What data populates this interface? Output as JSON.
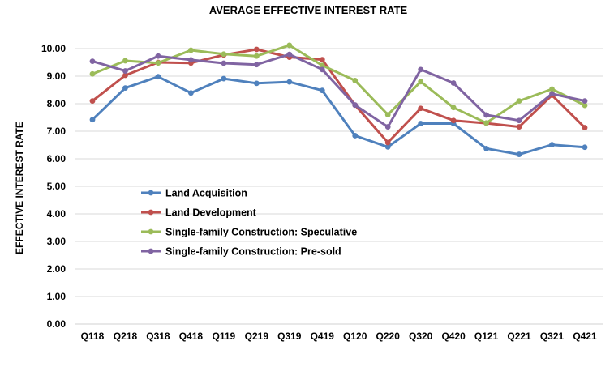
{
  "chart_data": {
    "type": "line",
    "title": "AVERAGE EFFECTIVE INTEREST RATE",
    "xlabel": "",
    "ylabel": "EFFECTIVE INTEREST RATE",
    "ylim": [
      0,
      10
    ],
    "yticks": [
      "0.00",
      "1.00",
      "2.00",
      "3.00",
      "4.00",
      "5.00",
      "6.00",
      "7.00",
      "8.00",
      "9.00",
      "10.00"
    ],
    "grid": "horizontal",
    "legend_position": "center-left",
    "categories": [
      "Q118",
      "Q218",
      "Q318",
      "Q418",
      "Q119",
      "Q219",
      "Q319",
      "Q419",
      "Q120",
      "Q220",
      "Q320",
      "Q420",
      "Q121",
      "Q221",
      "Q321",
      "Q421"
    ],
    "series": [
      {
        "name": "Land Acquisition",
        "color": "#4F81BD",
        "values": [
          7.42,
          8.57,
          8.98,
          8.39,
          8.91,
          8.74,
          8.79,
          8.48,
          6.84,
          6.43,
          7.28,
          7.28,
          6.37,
          6.16,
          6.51,
          6.42
        ]
      },
      {
        "name": "Land Development",
        "color": "#C0504D",
        "values": [
          8.1,
          9.03,
          9.5,
          9.48,
          9.77,
          9.97,
          9.69,
          9.6,
          7.95,
          6.59,
          7.83,
          7.39,
          7.29,
          7.16,
          8.31,
          7.13
        ]
      },
      {
        "name": "Single-family Construction: Speculative",
        "color": "#9BBB59",
        "values": [
          9.08,
          9.56,
          9.48,
          9.94,
          9.8,
          9.73,
          10.12,
          9.39,
          8.84,
          7.6,
          8.8,
          7.86,
          7.3,
          8.1,
          8.53,
          7.94
        ]
      },
      {
        "name": "Single-family Construction: Pre-sold",
        "color": "#8064A2",
        "values": [
          9.54,
          9.19,
          9.73,
          9.59,
          9.47,
          9.42,
          9.79,
          9.24,
          7.95,
          7.16,
          9.24,
          8.75,
          7.59,
          7.39,
          8.36,
          8.1
        ]
      }
    ]
  }
}
